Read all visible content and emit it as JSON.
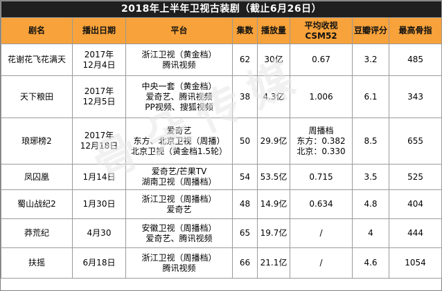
{
  "title": "2018年上半年卫视古装剧（截止6月26日）",
  "headers": {
    "name": "剧名",
    "date": "播出日期",
    "platform": "平台",
    "episodes": "集数",
    "plays": "播放量",
    "rating_a": "平均收视",
    "rating_b": "CSM52",
    "douban": "豆瓣评分",
    "bones": "最高骨指"
  },
  "rows": [
    {
      "name": "花谢花飞花满天",
      "date": [
        "2017年",
        "12月4日"
      ],
      "platform": [
        "浙江卫视（黄金档）",
        "腾讯视频"
      ],
      "episodes": "62",
      "plays": "30亿",
      "rating": [
        "0.67"
      ],
      "douban": "3.2",
      "bones": "485"
    },
    {
      "name": "天下粮田",
      "date": [
        "2017年",
        "12月5日"
      ],
      "platform": [
        "中央一套（黄金档）",
        "爱奇艺、腾讯视频",
        "PP视频、搜狐视频"
      ],
      "episodes": "38",
      "plays": "4.3亿",
      "rating": [
        "1.006"
      ],
      "douban": "6.1",
      "bones": "343"
    },
    {
      "name": "琅琊榜2",
      "date": [
        "2017年",
        "12月18日"
      ],
      "platform": [
        "爱奇艺",
        "东方、北京卫视（周播）",
        "北京卫视（黄金档1.5轮）"
      ],
      "episodes": "50",
      "plays": "29.9亿",
      "rating": [
        "周播档",
        "东方：0.382",
        "北京：0.330"
      ],
      "douban": "8.5",
      "bones": "655"
    },
    {
      "name": "凤囚凰",
      "date": [
        "1月14日"
      ],
      "platform": [
        "爱奇艺/芒果TV",
        "湖南卫视（周播档）"
      ],
      "episodes": "54",
      "plays": "53.5亿",
      "rating": [
        "0.715"
      ],
      "douban": "3.5",
      "bones": "525"
    },
    {
      "name": "蜀山战纪2",
      "date": [
        "1月30日"
      ],
      "platform": [
        "浙江卫视（周播档）",
        "爱奇艺"
      ],
      "episodes": "48",
      "plays": "14.9亿",
      "rating": [
        "0.634"
      ],
      "douban": "4.8",
      "bones": "404"
    },
    {
      "name": "莽荒纪",
      "date": [
        "4月30"
      ],
      "platform": [
        "安徽卫视（周播档）",
        "爱奇艺、腾讯视频"
      ],
      "episodes": "65",
      "plays": "19.7亿",
      "rating": [
        "/"
      ],
      "douban": "4",
      "bones": "444"
    },
    {
      "name": "扶摇",
      "date": [
        "6月18日"
      ],
      "platform": [
        "浙江卫视（周播档）",
        "腾讯视频"
      ],
      "episodes": "66",
      "plays": "21.1亿",
      "rating": [
        "/"
      ],
      "douban": "4.6",
      "bones": "1054"
    }
  ]
}
